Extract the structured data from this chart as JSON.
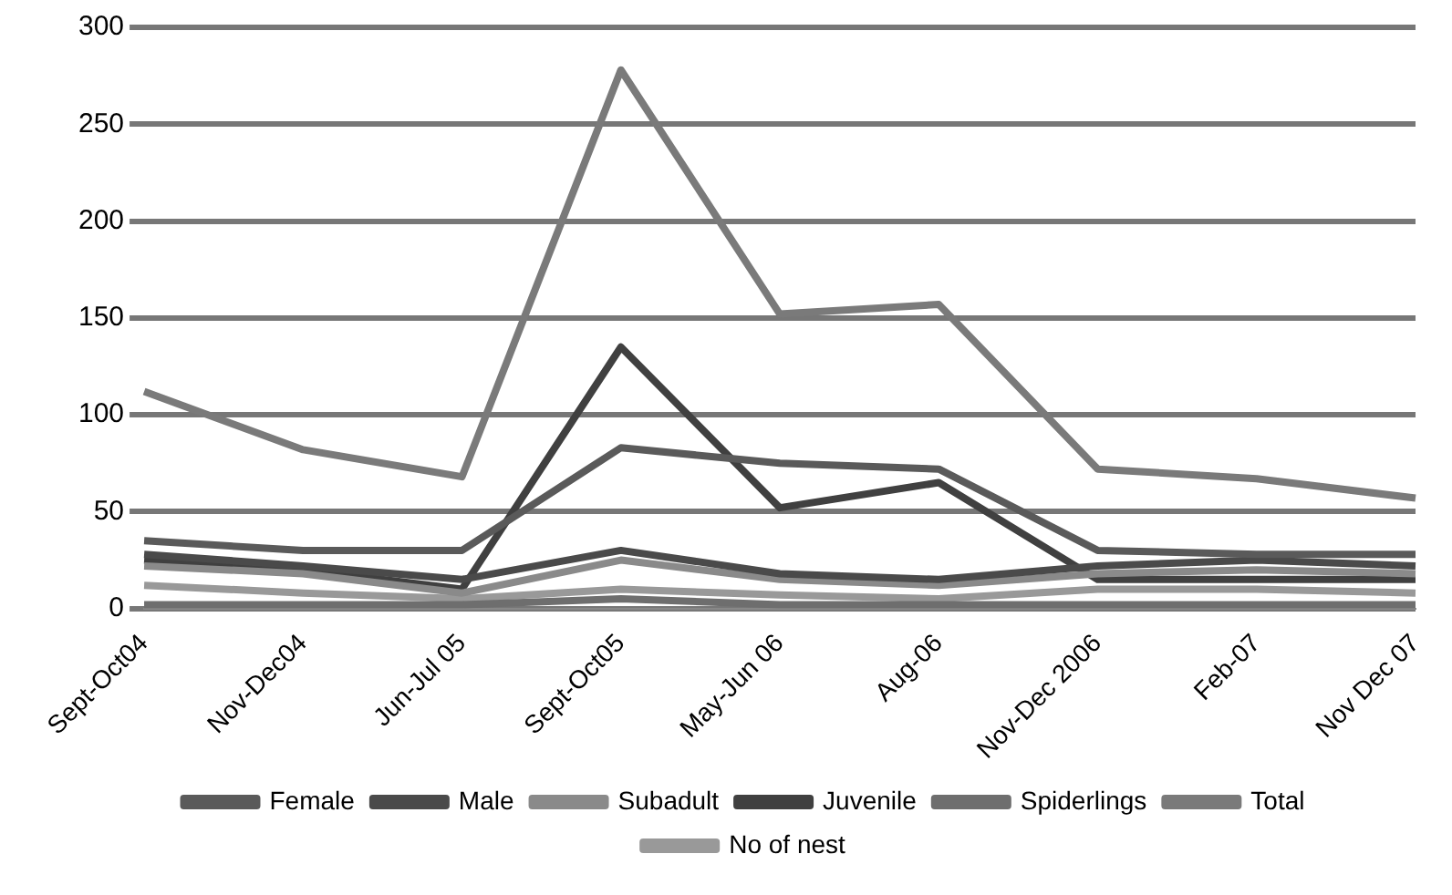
{
  "chart_data": {
    "type": "line",
    "categories": [
      "Sept-Oct04",
      "Nov-Dec04",
      "Jun-Jul 05",
      "Sept-Oct05",
      "May-Jun 06",
      "Aug-06",
      "Nov-Dec 2006",
      "Feb-07",
      "Nov Dec 07"
    ],
    "ylim": [
      0,
      300
    ],
    "yticks": [
      0,
      50,
      100,
      150,
      200,
      250,
      300
    ],
    "grid": "y",
    "legend": "bottom",
    "marker": "none",
    "line_style": "solid",
    "series": [
      {
        "name": "Female",
        "color": "#5a5a5a",
        "values": [
          35,
          30,
          30,
          83,
          75,
          72,
          30,
          28,
          28
        ]
      },
      {
        "name": "Male",
        "color": "#4a4a4a",
        "values": [
          28,
          22,
          15,
          30,
          18,
          15,
          22,
          25,
          22
        ]
      },
      {
        "name": "Subadult",
        "color": "#8a8a8a",
        "values": [
          22,
          18,
          8,
          25,
          15,
          12,
          18,
          20,
          18
        ]
      },
      {
        "name": "Juvenile",
        "color": "#404040",
        "values": [
          25,
          20,
          10,
          135,
          52,
          65,
          15,
          15,
          15
        ]
      },
      {
        "name": "Spiderlings",
        "color": "#6e6e6e",
        "values": [
          2,
          2,
          2,
          5,
          2,
          2,
          2,
          2,
          2
        ]
      },
      {
        "name": "Total",
        "color": "#7a7a7a",
        "values": [
          112,
          82,
          68,
          278,
          152,
          157,
          72,
          67,
          57
        ]
      },
      {
        "name": "No of nest",
        "color": "#999999",
        "values": [
          12,
          8,
          5,
          10,
          7,
          5,
          10,
          10,
          8
        ]
      }
    ]
  }
}
